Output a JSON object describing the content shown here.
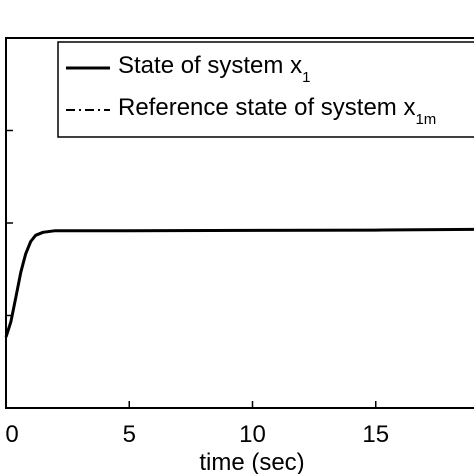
{
  "chart_data": {
    "type": "line",
    "xlabel": "time (sec)",
    "ylabel": "",
    "xlim": [
      0,
      20
    ],
    "ylim": [
      0,
      1.2
    ],
    "x_ticks": [
      0,
      5,
      10,
      15
    ],
    "x_tick_labels": [
      "0",
      "5",
      "10",
      "15"
    ],
    "y_ticks": [
      0,
      0.3,
      0.6,
      0.9,
      1.2
    ],
    "grid": false,
    "legend_position": "top-right",
    "series": [
      {
        "name": "State of system x",
        "name_subscript": "1",
        "line_style": "solid",
        "color": "#000000",
        "x": [
          0,
          0.2,
          0.4,
          0.6,
          0.8,
          1.0,
          1.2,
          1.5,
          2.0,
          3.0,
          5.0,
          10.0,
          15.0,
          20.0
        ],
        "y": [
          0.23,
          0.28,
          0.36,
          0.44,
          0.5,
          0.54,
          0.56,
          0.57,
          0.575,
          0.575,
          0.575,
          0.576,
          0.577,
          0.58
        ]
      },
      {
        "name": "Reference state of system x",
        "name_subscript": "1m",
        "line_style": "dash-dot",
        "color": "#000000",
        "x": [
          0,
          0.2,
          0.4,
          0.6,
          0.8,
          1.0,
          1.2,
          1.5,
          2.0,
          3.0,
          5.0,
          10.0,
          15.0,
          20.0
        ],
        "y": [
          0.23,
          0.28,
          0.36,
          0.44,
          0.5,
          0.54,
          0.56,
          0.57,
          0.575,
          0.575,
          0.575,
          0.576,
          0.577,
          0.58
        ]
      }
    ]
  }
}
